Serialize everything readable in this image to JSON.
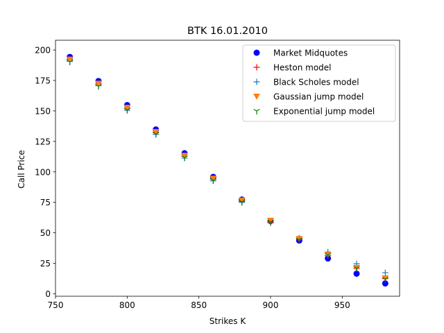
{
  "chart_data": {
    "type": "scatter",
    "title": "BTK 16.01.2010",
    "xlabel": "Strikes K",
    "ylabel": "Call Price",
    "xlim": [
      750,
      990
    ],
    "ylim": [
      -2,
      208
    ],
    "xticks": [
      750,
      800,
      850,
      900,
      950
    ],
    "yticks": [
      0,
      25,
      50,
      75,
      100,
      125,
      150,
      175,
      200
    ],
    "grid": false,
    "legend_position": "top-right",
    "x": [
      760,
      780,
      800,
      820,
      840,
      860,
      880,
      900,
      920,
      940,
      960,
      980
    ],
    "series": [
      {
        "name": "Market Midquotes",
        "marker": "circle",
        "color": "#0000ff",
        "values": [
          194.3,
          174.5,
          154.8,
          134.8,
          115.3,
          95.9,
          77.3,
          59.8,
          43.7,
          29.0,
          16.5,
          8.5
        ]
      },
      {
        "name": "Heston model",
        "marker": "plus",
        "color": "#ff0000",
        "values": [
          192.2,
          172.2,
          152.4,
          132.6,
          112.9,
          93.9,
          75.8,
          58.3,
          44.8,
          31.3,
          20.9,
          12.4
        ]
      },
      {
        "name": "Black Scholes model",
        "marker": "plus",
        "color": "#1f77b4",
        "values": [
          190.7,
          170.7,
          150.5,
          130.8,
          111.3,
          92.7,
          75.0,
          59.0,
          45.8,
          34.3,
          24.6,
          17.3
        ]
      },
      {
        "name": "Gaussian jump model",
        "marker": "triangle-down",
        "color": "#ff7f0e",
        "values": [
          192.3,
          172.5,
          152.7,
          132.9,
          113.4,
          94.6,
          76.7,
          60.1,
          45.2,
          32.0,
          21.3,
          12.8
        ]
      },
      {
        "name": "Exponential jump model",
        "marker": "tri-down",
        "color": "#008000",
        "values": [
          190.3,
          170.3,
          150.7,
          131.0,
          111.7,
          93.0,
          75.3,
          59.0,
          44.3,
          31.7,
          20.9,
          12.0
        ]
      }
    ]
  }
}
